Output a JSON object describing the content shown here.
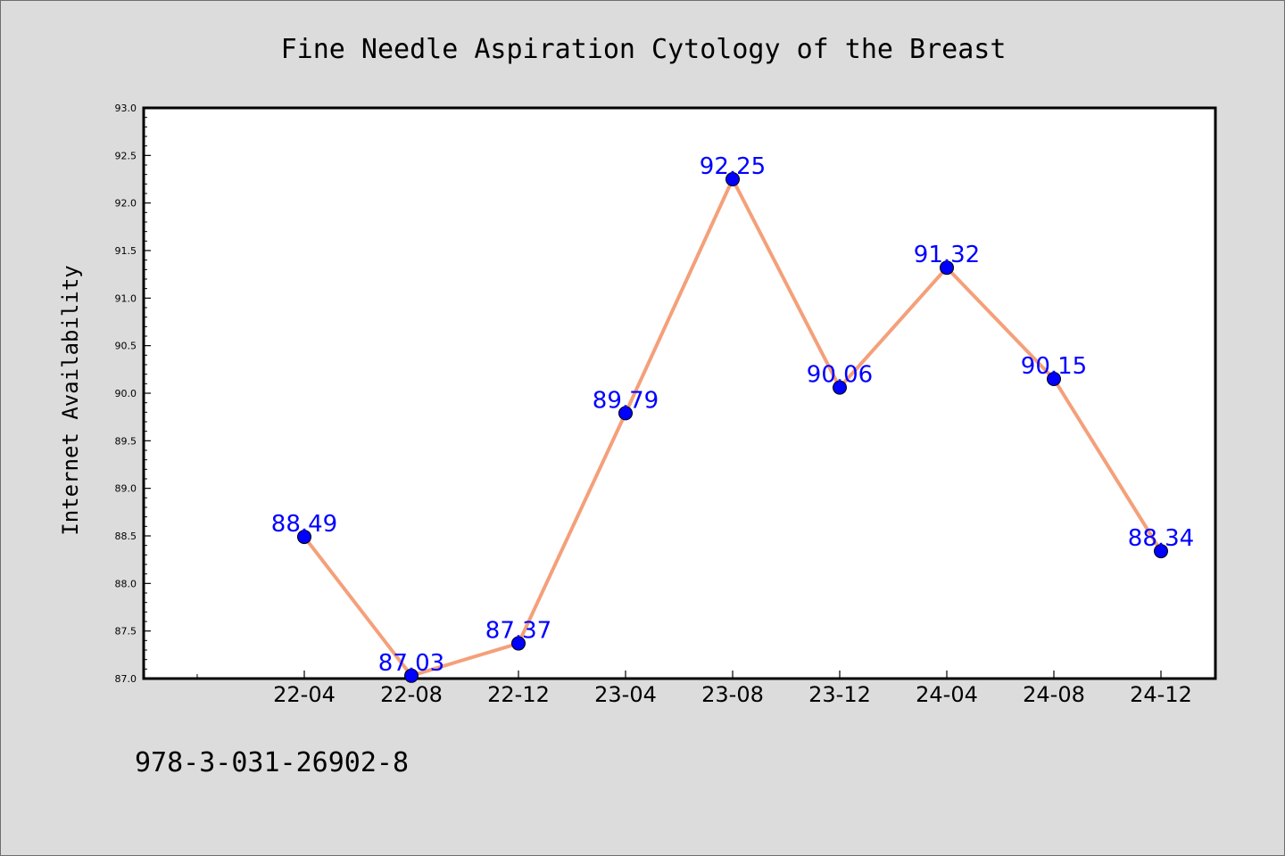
{
  "chart_data": {
    "type": "line",
    "title": "Fine Needle Aspiration Cytology of the Breast",
    "ylabel": "Internet Availability",
    "xlabel": "",
    "categories": [
      "22-04",
      "22-08",
      "22-12",
      "23-04",
      "23-08",
      "23-12",
      "24-04",
      "24-08",
      "24-12"
    ],
    "values": [
      88.49,
      87.03,
      87.37,
      89.79,
      92.25,
      90.06,
      91.32,
      90.15,
      88.34
    ],
    "data_labels": [
      "88.49",
      "87.03",
      "87.37",
      "89.79",
      "92.25",
      "90.06",
      "91.32",
      "90.15",
      "88.34"
    ],
    "ylim": [
      87.0,
      93.0
    ],
    "y_ticks": [
      "87.0",
      "87.5",
      "88.0",
      "88.5",
      "89.0",
      "89.5",
      "90.0",
      "90.5",
      "91.0",
      "91.5",
      "92.0",
      "92.5",
      "93.0"
    ],
    "grid": false,
    "legend": "none",
    "line_color": "#f4a07a",
    "marker_color": "#0000ff",
    "label_color": "#0000ff",
    "background_color": "#dcdcdc",
    "plot_background_color": "#ffffff"
  },
  "footer": {
    "text": "978-3-031-26902-8"
  }
}
